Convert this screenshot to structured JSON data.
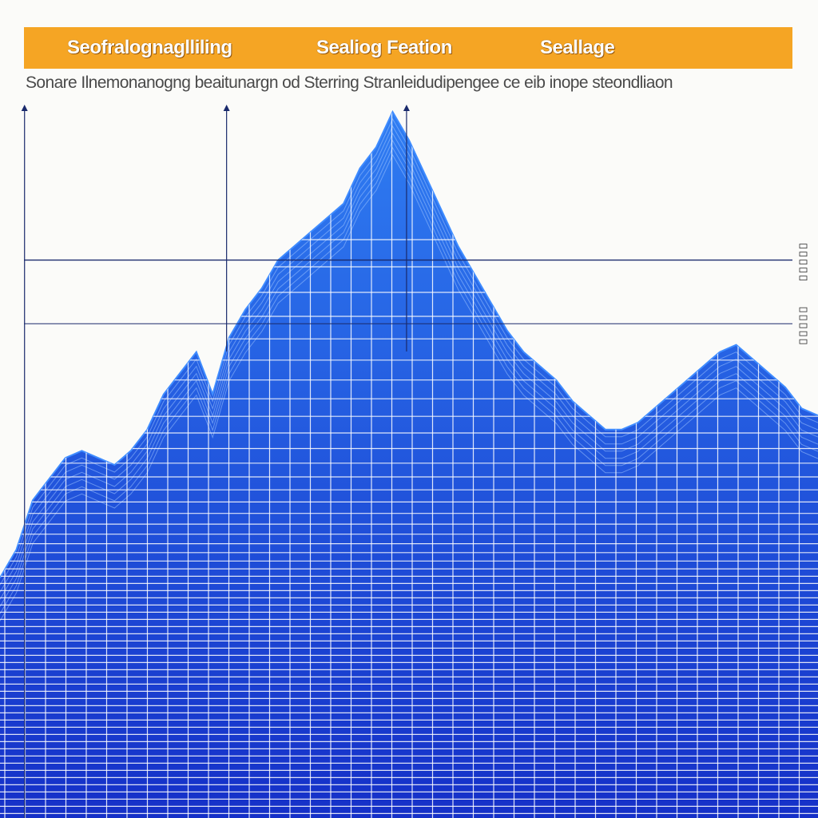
{
  "header": {
    "labels": [
      "Seofralognaglliling",
      "Sealiog  Feation",
      "Seallage"
    ]
  },
  "subtitle": "Sonare Ilnemonanogng beaitunargn  od  Sterring Stranleidudipengee ce eib inope steondliaon",
  "legend": {
    "labels": [
      "——",
      "——"
    ]
  },
  "colors": {
    "header": "#f5a524",
    "area_top": "#2f7df2",
    "area_bottom": "#1530c8",
    "grid": "#ffffff",
    "reference_line": "#1a2a6c"
  },
  "chart_data": {
    "type": "area",
    "x": [
      0,
      2,
      4,
      6,
      8,
      10,
      12,
      14,
      16,
      18,
      20,
      22,
      24,
      26,
      28,
      30,
      32,
      34,
      36,
      38,
      40,
      42,
      44,
      46,
      48,
      50,
      52,
      54,
      56,
      58,
      60,
      62,
      64,
      66,
      68,
      70,
      72,
      74,
      76,
      78,
      80,
      82,
      84,
      86,
      88,
      90,
      92,
      94,
      96,
      98,
      100
    ],
    "series": [
      {
        "values": [
          34,
          38,
          45,
          48,
          51,
          52,
          51,
          50,
          52,
          55,
          60,
          63,
          66,
          60,
          68,
          72,
          75,
          79,
          81,
          83,
          85,
          87,
          92,
          95,
          100,
          96,
          91,
          86,
          81,
          77,
          73,
          69,
          66,
          64,
          62,
          59,
          57,
          55,
          55,
          56,
          58,
          60,
          62,
          64,
          66,
          67,
          65,
          63,
          61,
          58,
          57
        ]
      }
    ],
    "ylim": [
      0,
      100
    ],
    "reference_lines": [
      79,
      70
    ],
    "grid": true,
    "xlabel": "",
    "ylabel": ""
  }
}
